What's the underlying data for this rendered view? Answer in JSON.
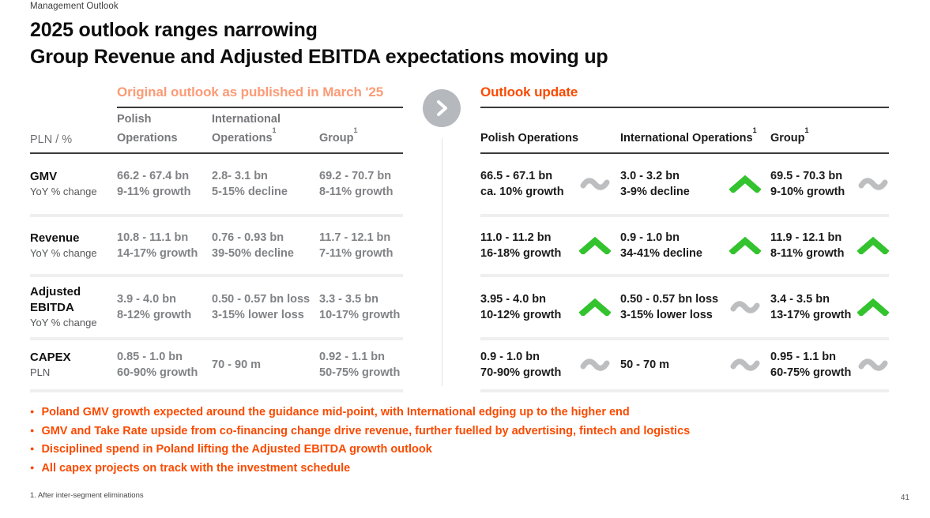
{
  "page": {
    "eyebrow": "Management Outlook",
    "title_line1": "2025 outlook ranges narrowing",
    "title_line2": "Group Revenue and Adjusted EBITDA expectations moving up",
    "footnote": "1. After inter-segment eliminations",
    "page_number": "41"
  },
  "colors": {
    "accent": "#FB4A00",
    "accent_light": "#FB9B76",
    "positive_green": "#33C32E",
    "neutral_gray": "#BDBEC0",
    "circle_gray": "#B5B9BD"
  },
  "left_table": {
    "title": "Original outlook as published in March '25",
    "unit_label": "PLN / %",
    "columns": [
      {
        "label": "Polish Operations",
        "sup": ""
      },
      {
        "label": "International Operations",
        "sup": "1"
      },
      {
        "label": "Group",
        "sup": "1"
      }
    ],
    "rows": [
      {
        "metric": "GMV",
        "sub": "YoY % change",
        "cells": [
          {
            "line1": "66.2 - 67.4 bn",
            "line2": "9-11% growth"
          },
          {
            "line1": "2.8- 3.1 bn",
            "line2": "5-15% decline"
          },
          {
            "line1": "69.2 - 70.7 bn",
            "line2": "8-11% growth"
          }
        ]
      },
      {
        "metric": "Revenue",
        "sub": "YoY % change",
        "cells": [
          {
            "line1": "10.8 - 11.1 bn",
            "line2": "14-17% growth"
          },
          {
            "line1": "0.76 - 0.93 bn",
            "line2": "39-50% decline"
          },
          {
            "line1": "11.7 - 12.1 bn",
            "line2": "7-11% growth"
          }
        ]
      },
      {
        "metric": "Adjusted EBITDA",
        "sub": "YoY % change",
        "cells": [
          {
            "line1": "3.9 - 4.0 bn",
            "line2": "8-12% growth"
          },
          {
            "line1": "0.50 - 0.57 bn loss",
            "line2": "3-15% lower loss"
          },
          {
            "line1": "3.3 - 3.5 bn",
            "line2": "10-17% growth"
          }
        ]
      },
      {
        "metric": "CAPEX",
        "sub": "PLN",
        "cells": [
          {
            "line1": "0.85 - 1.0 bn",
            "line2": "60-90% growth"
          },
          {
            "line1": "70 - 90 m",
            "line2": ""
          },
          {
            "line1": "0.92 - 1.1 bn",
            "line2": "50-75% growth"
          }
        ]
      }
    ]
  },
  "right_table": {
    "title": "Outlook update",
    "columns": [
      {
        "label": "Polish Operations",
        "sup": ""
      },
      {
        "label": "International Operations",
        "sup": "1"
      },
      {
        "label": "Group",
        "sup": "1"
      }
    ],
    "rows": [
      {
        "cells": [
          {
            "line1": "66.5 - 67.1 bn",
            "line2": "ca. 10% growth",
            "trend": "flat"
          },
          {
            "line1": "3.0 - 3.2 bn",
            "line2": "3-9% decline",
            "trend": "up"
          },
          {
            "line1": "69.5 - 70.3 bn",
            "line2": "9-10% growth",
            "trend": "flat"
          }
        ]
      },
      {
        "cells": [
          {
            "line1": "11.0 - 11.2 bn",
            "line2": "16-18% growth",
            "trend": "up"
          },
          {
            "line1": "0.9 - 1.0 bn",
            "line2": "34-41% decline",
            "trend": "up"
          },
          {
            "line1": "11.9 - 12.1 bn",
            "line2": "8-11% growth",
            "trend": "up"
          }
        ]
      },
      {
        "cells": [
          {
            "line1": "3.95 - 4.0 bn",
            "line2": "10-12% growth",
            "trend": "up"
          },
          {
            "line1": "0.50 - 0.57 bn loss",
            "line2": "3-15% lower loss",
            "trend": "flat"
          },
          {
            "line1": "3.4 - 3.5 bn",
            "line2": "13-17% growth",
            "trend": "up"
          }
        ]
      },
      {
        "cells": [
          {
            "line1": "0.9 - 1.0 bn",
            "line2": "70-90% growth",
            "trend": "flat"
          },
          {
            "line1": "50 - 70 m",
            "line2": "",
            "trend": "flat"
          },
          {
            "line1": "0.95 - 1.1 bn",
            "line2": "60-75% growth",
            "trend": "flat"
          }
        ]
      }
    ]
  },
  "bullets": [
    "Poland GMV growth expected around the guidance mid-point, with International edging up to the higher end",
    "GMV and Take Rate upside from co-financing change drive revenue, further fuelled by advertising, fintech and logistics",
    "Disciplined spend in Poland lifting the Adjusted EBITDA growth outlook",
    "All capex projects on track with the investment schedule"
  ]
}
